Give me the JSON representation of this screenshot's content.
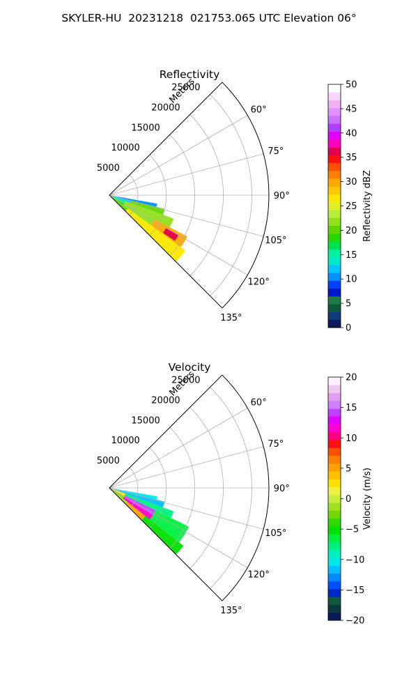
{
  "figure": {
    "title": "SKYLER-HU  20231218  021753.065 UTC Elevation 06°",
    "palettes": {
      "reflectivity": [
        "#0a1a5c",
        "#123a7a",
        "#0e5a3a",
        "#1f7a46",
        "#0016c8",
        "#0040ff",
        "#0090ff",
        "#00c8ff",
        "#00e8c8",
        "#00f0a0",
        "#00e050",
        "#28d800",
        "#60d800",
        "#90e020",
        "#b8ec40",
        "#e0f028",
        "#ffe800",
        "#ffc800",
        "#ffa800",
        "#ff8000",
        "#ff5000",
        "#ff1010",
        "#e00050",
        "#ff00c0",
        "#e000ff",
        "#b040ff",
        "#c870ff",
        "#e090ff",
        "#f0b0f0",
        "#f8d8f8",
        "#ffffff"
      ],
      "velocity": [
        "#0a1a5c",
        "#0a3a40",
        "#0e5a3a",
        "#0028c8",
        "#0050ff",
        "#0088ff",
        "#00c0ff",
        "#00e8e8",
        "#00f0c0",
        "#00f080",
        "#00f040",
        "#00e000",
        "#30d800",
        "#70d800",
        "#a0e020",
        "#c8ec40",
        "#f0f040",
        "#ffe000",
        "#ffc000",
        "#ffa000",
        "#ff8000",
        "#ff5000",
        "#ff1010",
        "#ff0080",
        "#ff00d0",
        "#e000ff",
        "#c040ff",
        "#d080ff",
        "#e0a0f0",
        "#f0c8f0",
        "#fff0ff"
      ]
    }
  },
  "chart_data": [
    {
      "type": "heatmap",
      "subtype": "polar-sector-ppi",
      "title": "Reflectivity",
      "radial_label": "Meters",
      "r_ticks": [
        5000,
        10000,
        15000,
        20000,
        25000
      ],
      "r_tick_labels": [
        "5000",
        "10000",
        "15000",
        "20000",
        "25000"
      ],
      "rlim": [
        0,
        28000
      ],
      "theta_ticks": [
        60,
        75,
        90,
        105,
        120,
        135
      ],
      "theta_tick_labels": [
        "60°",
        "75°",
        "90°",
        "105°",
        "120°",
        "135°"
      ],
      "theta_range_deg": [
        45,
        135
      ],
      "colorbar": {
        "label": "Reflectivity dBZ",
        "min": 0,
        "max": 50,
        "ticks": [
          0,
          5,
          10,
          15,
          20,
          25,
          30,
          35,
          40,
          45,
          50
        ],
        "tick_labels": [
          "0",
          "5",
          "10",
          "15",
          "20",
          "25",
          "30",
          "35",
          "40",
          "45",
          "50"
        ]
      },
      "field_description": "echoes between azimuths ~98°–135°, ranges ~0–17000 m; 15–25 dBZ generally, 30–38 dBZ core near 120°–128° at 12000–15000 m",
      "sectors": [
        {
          "az": [
            100,
            104
          ],
          "r": [
            500,
            8500
          ],
          "value": 10
        },
        {
          "az": [
            104,
            110
          ],
          "r": [
            500,
            4000
          ],
          "value": 12
        },
        {
          "az": [
            104,
            110
          ],
          "r": [
            4000,
            10000
          ],
          "value": 20
        },
        {
          "az": [
            110,
            118
          ],
          "r": [
            500,
            3000
          ],
          "value": 16
        },
        {
          "az": [
            110,
            118
          ],
          "r": [
            3000,
            12000
          ],
          "value": 22
        },
        {
          "az": [
            118,
            126
          ],
          "r": [
            500,
            3000
          ],
          "value": 18
        },
        {
          "az": [
            118,
            126
          ],
          "r": [
            3000,
            9000
          ],
          "value": 22
        },
        {
          "az": [
            118,
            126
          ],
          "r": [
            9000,
            15500
          ],
          "value": 30
        },
        {
          "az": [
            120,
            125
          ],
          "r": [
            11500,
            14000
          ],
          "value": 36
        },
        {
          "az": [
            126,
            135
          ],
          "r": [
            500,
            4000
          ],
          "value": 20
        },
        {
          "az": [
            126,
            135
          ],
          "r": [
            4000,
            16500
          ],
          "value": 27
        }
      ]
    },
    {
      "type": "heatmap",
      "subtype": "polar-sector-ppi",
      "title": "Velocity",
      "radial_label": "Meters",
      "r_ticks": [
        5000,
        10000,
        15000,
        20000,
        25000
      ],
      "r_tick_labels": [
        "5000",
        "10000",
        "15000",
        "20000",
        "25000"
      ],
      "rlim": [
        0,
        28000
      ],
      "theta_ticks": [
        60,
        75,
        90,
        105,
        120,
        135
      ],
      "theta_tick_labels": [
        "60°",
        "75°",
        "90°",
        "105°",
        "120°",
        "135°"
      ],
      "theta_range_deg": [
        45,
        135
      ],
      "colorbar": {
        "label": "Velocity (m/s)",
        "min": -20,
        "max": 20,
        "ticks": [
          -20,
          -15,
          -10,
          -5,
          0,
          5,
          10,
          15,
          20
        ],
        "tick_labels": [
          "−20",
          "−15",
          "−10",
          "−5",
          "0",
          "5",
          "10",
          "15",
          "20"
        ]
      },
      "field_description": "same echo footprint; -8 to -12 m/s (green/cyan) on the northern flank, -5 m/s in the outer southern region, +10 to +15 m/s (magenta) band near 115°–127° at 4000–9000 m",
      "sectors": [
        {
          "az": [
            100,
            104
          ],
          "r": [
            500,
            8500
          ],
          "value": -10
        },
        {
          "az": [
            104,
            110
          ],
          "r": [
            500,
            10000
          ],
          "value": -11
        },
        {
          "az": [
            110,
            116
          ],
          "r": [
            500,
            3000
          ],
          "value": 3
        },
        {
          "az": [
            110,
            116
          ],
          "r": [
            3000,
            12000
          ],
          "value": -8
        },
        {
          "az": [
            116,
            122
          ],
          "r": [
            500,
            3000
          ],
          "value": 2
        },
        {
          "az": [
            116,
            122
          ],
          "r": [
            3000,
            9000
          ],
          "value": 14
        },
        {
          "az": [
            116,
            122
          ],
          "r": [
            9000,
            15500
          ],
          "value": -6
        },
        {
          "az": [
            122,
            128
          ],
          "r": [
            500,
            3000
          ],
          "value": -2
        },
        {
          "az": [
            122,
            128
          ],
          "r": [
            3000,
            9000
          ],
          "value": 11
        },
        {
          "az": [
            122,
            128
          ],
          "r": [
            9000,
            15500
          ],
          "value": -6
        },
        {
          "az": [
            128,
            135
          ],
          "r": [
            500,
            4000
          ],
          "value": -1
        },
        {
          "az": [
            128,
            135
          ],
          "r": [
            4000,
            8000
          ],
          "value": 5
        },
        {
          "az": [
            128,
            135
          ],
          "r": [
            8000,
            16500
          ],
          "value": -5
        }
      ]
    }
  ]
}
